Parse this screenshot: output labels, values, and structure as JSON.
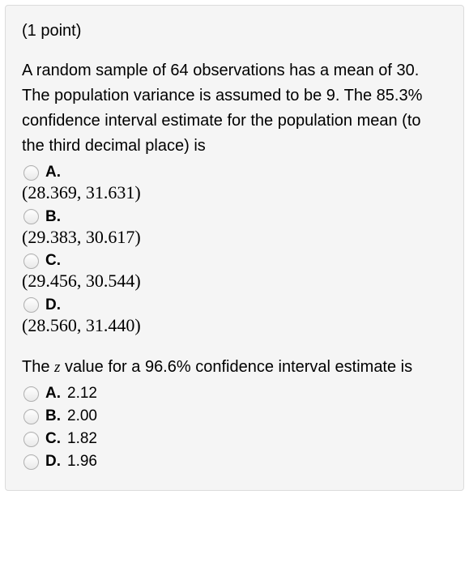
{
  "points_label": "(1 point)",
  "question1": {
    "text": "A random sample of 64 observations has a mean of 30. The population variance is assumed to be 9. The 85.3% confidence interval estimate for the population mean (to the third decimal place) is",
    "options": [
      {
        "letter": "A.",
        "value": "(28.369, 31.631)"
      },
      {
        "letter": "B.",
        "value": "(29.383, 30.617)"
      },
      {
        "letter": "C.",
        "value": "(29.456, 30.544)"
      },
      {
        "letter": "D.",
        "value": "(28.560, 31.440)"
      }
    ]
  },
  "question2": {
    "prefix": "The ",
    "var": "z",
    "suffix": " value for a 96.6% confidence interval estimate is",
    "options": [
      {
        "letter": "A.",
        "value": "2.12"
      },
      {
        "letter": "B.",
        "value": "2.00"
      },
      {
        "letter": "C.",
        "value": "1.82"
      },
      {
        "letter": "D.",
        "value": "1.96"
      }
    ]
  }
}
